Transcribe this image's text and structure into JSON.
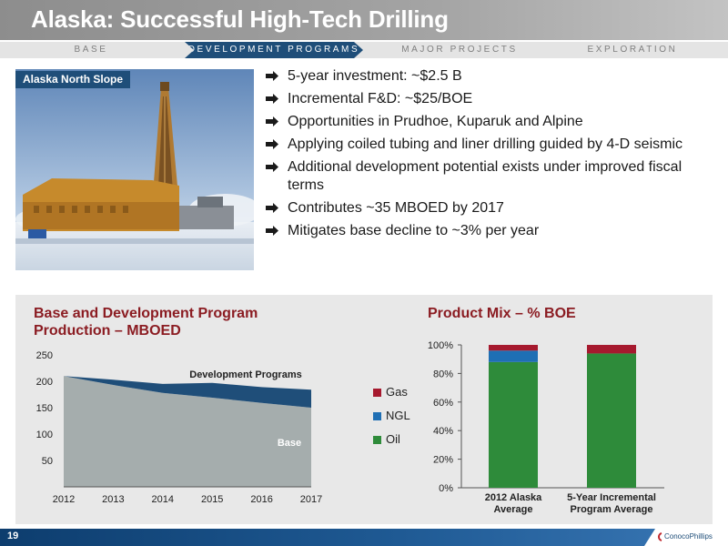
{
  "title": "Alaska: Successful High-Tech Drilling",
  "nav": [
    {
      "label": "BASE",
      "active": false
    },
    {
      "label": "DEVELOPMENT PROGRAMS",
      "active": true
    },
    {
      "label": "MAJOR PROJECTS",
      "active": false
    },
    {
      "label": "EXPLORATION",
      "active": false
    }
  ],
  "photo_label": "Alaska North Slope",
  "bullets": [
    "5-year investment: ~$2.5 B",
    "Incremental F&D: ~$25/BOE",
    "Opportunities in Prudhoe, Kuparuk and Alpine",
    "Applying coiled tubing and liner drilling guided by 4-D seismic",
    "Additional development potential exists under improved fiscal terms",
    "Contributes ~35 MBOED by 2017",
    "Mitigates base decline to ~3% per year"
  ],
  "footer": {
    "page": "19",
    "logo": "ConocoPhillips"
  },
  "colors": {
    "gas": "#a6192e",
    "ngl": "#1f6fb4",
    "oil": "#2e8b3a",
    "base": "#a5adad",
    "dev": "#1f4e79"
  },
  "chart_data": [
    {
      "type": "area",
      "title": "Base and Development Program Production – MBOED",
      "x": [
        2012,
        2013,
        2014,
        2015,
        2016,
        2017
      ],
      "ylim": [
        0,
        250
      ],
      "yticks": [
        50,
        100,
        150,
        200,
        250
      ],
      "series": [
        {
          "name": "Base",
          "values": [
            210,
            193,
            178,
            169,
            159,
            150
          ]
        },
        {
          "name": "Development Programs",
          "values": [
            0,
            10,
            17,
            28,
            30,
            34
          ]
        }
      ]
    },
    {
      "type": "bar",
      "title": "Product Mix – % BOE",
      "categories": [
        "2012 Alaska Average",
        "5-Year Incremental Program Average"
      ],
      "ylim": [
        0,
        100
      ],
      "yticks": [
        "0%",
        "20%",
        "40%",
        "60%",
        "80%",
        "100%"
      ],
      "series": [
        {
          "name": "Oil",
          "values": [
            88,
            94
          ]
        },
        {
          "name": "NGL",
          "values": [
            8,
            0
          ]
        },
        {
          "name": "Gas",
          "values": [
            4,
            6
          ]
        }
      ],
      "legend": [
        "Gas",
        "NGL",
        "Oil"
      ]
    }
  ]
}
